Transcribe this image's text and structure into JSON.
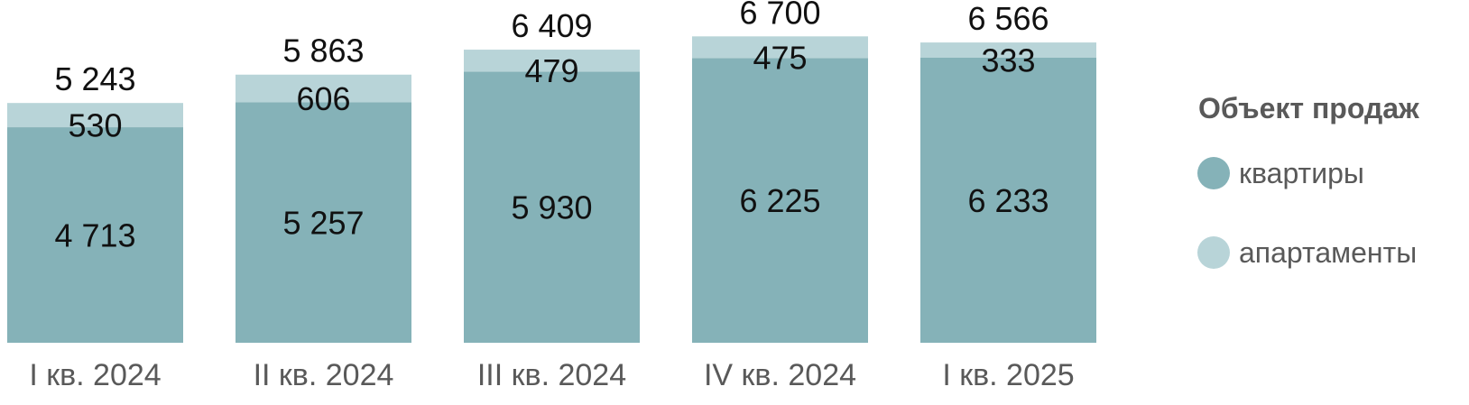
{
  "chart_data": {
    "type": "bar",
    "stacked": true,
    "categories": [
      "I кв. 2024",
      "II кв. 2024",
      "III кв. 2024",
      "IV кв. 2024",
      "I кв. 2025"
    ],
    "series": [
      {
        "name": "квартиры",
        "values": [
          4713,
          5257,
          5930,
          6225,
          6233
        ],
        "value_labels": [
          "4 713",
          "5 257",
          "5 930",
          "6 225",
          "6 233"
        ],
        "color": "#85b2b8"
      },
      {
        "name": "апартаменты",
        "values": [
          530,
          606,
          479,
          475,
          333
        ],
        "value_labels": [
          "530",
          "606",
          "479",
          "475",
          "333"
        ],
        "color": "#b8d4d8"
      }
    ],
    "totals": [
      5243,
      5863,
      6409,
      6700,
      6566
    ],
    "total_labels": [
      "5 243",
      "5 863",
      "6 409",
      "6 700",
      "6 566"
    ],
    "legend": {
      "title": "Объект продаж",
      "position": "right"
    },
    "grid": false,
    "ylim": [
      0,
      7000
    ]
  }
}
